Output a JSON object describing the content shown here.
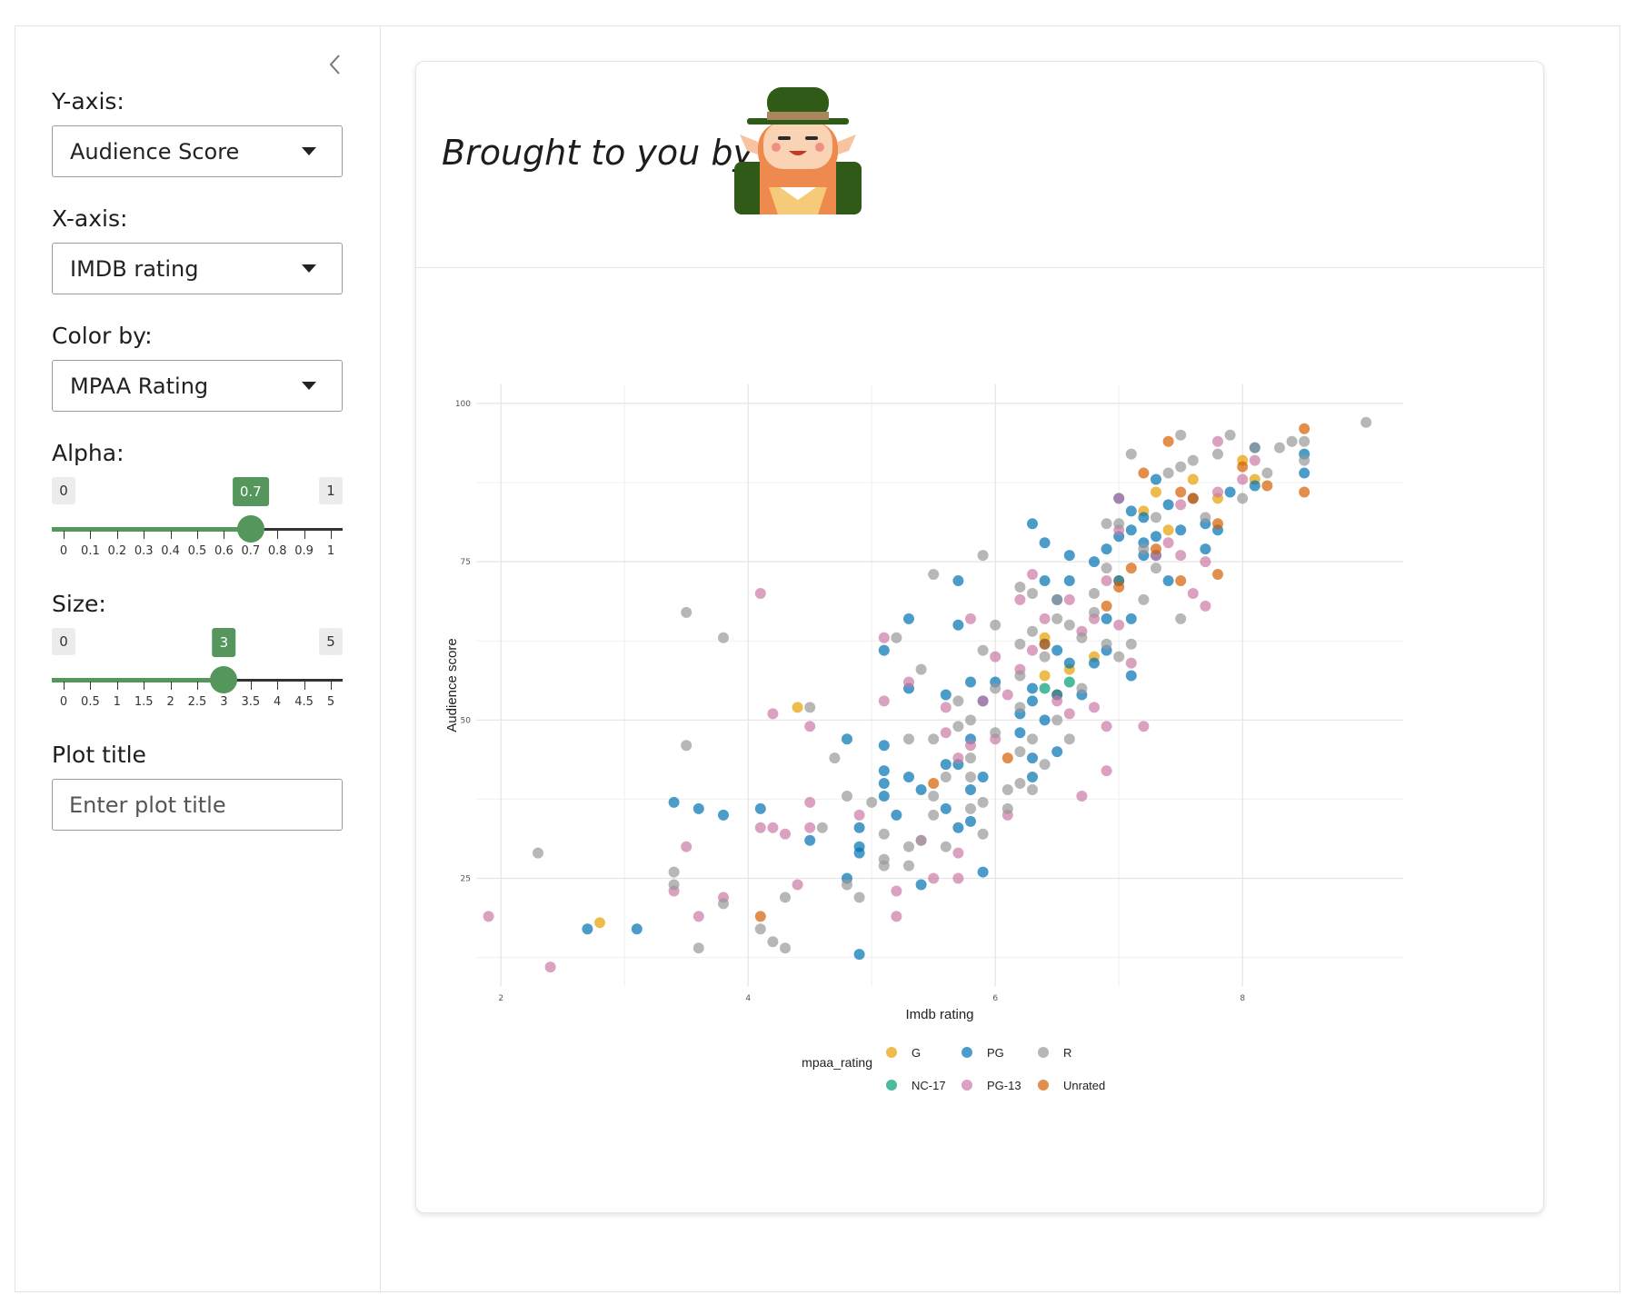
{
  "sidebar": {
    "yaxis": {
      "label": "Y-axis:",
      "value": "Audience Score"
    },
    "xaxis": {
      "label": "X-axis:",
      "value": "IMDB rating"
    },
    "colorby": {
      "label": "Color by:",
      "value": "MPAA Rating"
    },
    "alpha": {
      "label": "Alpha:",
      "min": "0",
      "max": "1",
      "value": "0.7",
      "level": 0.7,
      "ticks": [
        "0",
        "0.1",
        "0.2",
        "0.3",
        "0.4",
        "0.5",
        "0.6",
        "0.7",
        "0.8",
        "0.9",
        "1"
      ]
    },
    "size": {
      "label": "Size:",
      "min": "0",
      "max": "5",
      "value": "3",
      "level": 0.6,
      "ticks": [
        "0",
        "0.5",
        "1",
        "1.5",
        "2",
        "2.5",
        "3",
        "3.5",
        "4",
        "4.5",
        "5"
      ]
    },
    "plot_title": {
      "label": "Plot title",
      "placeholder": "Enter plot title"
    }
  },
  "header": {
    "tagline": "Brought to you by"
  },
  "icons": {
    "collapse": "chevron-left-icon",
    "mascot": "leprechaun-icon"
  },
  "colors": {
    "accent": "#55965c",
    "G": "#E69F00",
    "NC-17": "#009E73",
    "PG": "#0072B2",
    "PG-13": "#CC79A7",
    "R": "#999999",
    "Unrated": "#D55E00"
  },
  "chart_data": {
    "type": "scatter",
    "title": "",
    "xlabel": "Imdb rating",
    "ylabel": "Audience score",
    "xlim": [
      1.8,
      9.3
    ],
    "ylim": [
      8,
      103
    ],
    "xticks": [
      2,
      4,
      6,
      8
    ],
    "yticks": [
      25,
      50,
      75,
      100
    ],
    "grid": true,
    "legend": {
      "title": "mpaa_rating",
      "position": "bottom"
    },
    "series": [
      {
        "name": "G",
        "color": "#E69F00",
        "points": [
          [
            2.8,
            18
          ],
          [
            4.4,
            52
          ],
          [
            6.4,
            63
          ],
          [
            6.4,
            57
          ],
          [
            6.5,
            54
          ],
          [
            6.6,
            58
          ],
          [
            6.8,
            60
          ],
          [
            7.0,
            72
          ],
          [
            7.2,
            83
          ],
          [
            7.3,
            86
          ],
          [
            7.4,
            80
          ],
          [
            7.6,
            88
          ],
          [
            7.8,
            85
          ],
          [
            8.0,
            91
          ],
          [
            8.1,
            88
          ]
        ]
      },
      {
        "name": "NC-17",
        "color": "#009E73",
        "points": [
          [
            6.4,
            55
          ],
          [
            6.6,
            56
          ]
        ]
      },
      {
        "name": "PG",
        "color": "#0072B2",
        "points": [
          [
            2.7,
            17
          ],
          [
            3.1,
            17
          ],
          [
            3.4,
            37
          ],
          [
            3.6,
            36
          ],
          [
            3.8,
            35
          ],
          [
            4.1,
            36
          ],
          [
            4.5,
            31
          ],
          [
            4.8,
            25
          ],
          [
            4.8,
            47
          ],
          [
            4.9,
            33
          ],
          [
            4.9,
            30
          ],
          [
            4.9,
            29
          ],
          [
            4.9,
            13
          ],
          [
            5.1,
            46
          ],
          [
            5.1,
            42
          ],
          [
            5.1,
            40
          ],
          [
            5.1,
            38
          ],
          [
            5.1,
            61
          ],
          [
            5.2,
            35
          ],
          [
            5.3,
            66
          ],
          [
            5.3,
            55
          ],
          [
            5.3,
            41
          ],
          [
            5.4,
            39
          ],
          [
            5.4,
            24
          ],
          [
            5.6,
            36
          ],
          [
            5.6,
            43
          ],
          [
            5.6,
            54
          ],
          [
            5.7,
            33
          ],
          [
            5.7,
            43
          ],
          [
            5.7,
            65
          ],
          [
            5.7,
            72
          ],
          [
            5.8,
            34
          ],
          [
            5.8,
            39
          ],
          [
            5.8,
            47
          ],
          [
            5.8,
            56
          ],
          [
            5.9,
            26
          ],
          [
            5.9,
            41
          ],
          [
            5.9,
            53
          ],
          [
            6.0,
            56
          ],
          [
            6.2,
            51
          ],
          [
            6.2,
            48
          ],
          [
            6.3,
            41
          ],
          [
            6.3,
            44
          ],
          [
            6.3,
            53
          ],
          [
            6.3,
            55
          ],
          [
            6.3,
            81
          ],
          [
            6.4,
            78
          ],
          [
            6.4,
            72
          ],
          [
            6.4,
            62
          ],
          [
            6.4,
            50
          ],
          [
            6.5,
            45
          ],
          [
            6.5,
            54
          ],
          [
            6.5,
            61
          ],
          [
            6.5,
            69
          ],
          [
            6.6,
            59
          ],
          [
            6.6,
            72
          ],
          [
            6.6,
            76
          ],
          [
            6.7,
            54
          ],
          [
            6.8,
            75
          ],
          [
            6.8,
            59
          ],
          [
            6.9,
            61
          ],
          [
            6.9,
            66
          ],
          [
            6.9,
            77
          ],
          [
            7.0,
            72
          ],
          [
            7.0,
            79
          ],
          [
            7.0,
            85
          ],
          [
            7.1,
            80
          ],
          [
            7.1,
            66
          ],
          [
            7.1,
            57
          ],
          [
            7.1,
            83
          ],
          [
            7.2,
            76
          ],
          [
            7.2,
            78
          ],
          [
            7.2,
            82
          ],
          [
            7.3,
            79
          ],
          [
            7.3,
            76
          ],
          [
            7.3,
            88
          ],
          [
            7.4,
            72
          ],
          [
            7.4,
            84
          ],
          [
            7.5,
            80
          ],
          [
            7.6,
            85
          ],
          [
            7.7,
            81
          ],
          [
            7.7,
            77
          ],
          [
            7.8,
            80
          ],
          [
            7.9,
            86
          ],
          [
            8.1,
            87
          ],
          [
            8.1,
            93
          ],
          [
            8.5,
            92
          ],
          [
            8.5,
            89
          ]
        ]
      },
      {
        "name": "PG-13",
        "color": "#CC79A7",
        "points": [
          [
            1.9,
            19
          ],
          [
            2.4,
            11
          ],
          [
            3.4,
            23
          ],
          [
            3.5,
            30
          ],
          [
            3.6,
            19
          ],
          [
            3.8,
            22
          ],
          [
            4.1,
            70
          ],
          [
            4.1,
            33
          ],
          [
            4.2,
            33
          ],
          [
            4.2,
            51
          ],
          [
            4.3,
            32
          ],
          [
            4.4,
            24
          ],
          [
            4.5,
            49
          ],
          [
            4.5,
            37
          ],
          [
            4.5,
            33
          ],
          [
            4.9,
            35
          ],
          [
            5.1,
            53
          ],
          [
            5.1,
            63
          ],
          [
            5.2,
            23
          ],
          [
            5.2,
            19
          ],
          [
            5.3,
            56
          ],
          [
            5.4,
            31
          ],
          [
            5.5,
            25
          ],
          [
            5.6,
            52
          ],
          [
            5.6,
            48
          ],
          [
            5.7,
            44
          ],
          [
            5.7,
            29
          ],
          [
            5.7,
            25
          ],
          [
            5.8,
            46
          ],
          [
            5.8,
            66
          ],
          [
            5.9,
            53
          ],
          [
            6.0,
            60
          ],
          [
            6.0,
            47
          ],
          [
            6.1,
            54
          ],
          [
            6.1,
            35
          ],
          [
            6.2,
            58
          ],
          [
            6.2,
            69
          ],
          [
            6.3,
            73
          ],
          [
            6.3,
            61
          ],
          [
            6.4,
            66
          ],
          [
            6.5,
            53
          ],
          [
            6.6,
            69
          ],
          [
            6.6,
            51
          ],
          [
            6.7,
            64
          ],
          [
            6.7,
            38
          ],
          [
            6.8,
            52
          ],
          [
            6.8,
            66
          ],
          [
            6.9,
            42
          ],
          [
            6.9,
            49
          ],
          [
            6.9,
            72
          ],
          [
            7.0,
            65
          ],
          [
            7.0,
            80
          ],
          [
            7.0,
            85
          ],
          [
            7.1,
            59
          ],
          [
            7.2,
            49
          ],
          [
            7.3,
            76
          ],
          [
            7.4,
            78
          ],
          [
            7.5,
            84
          ],
          [
            7.5,
            76
          ],
          [
            7.6,
            70
          ],
          [
            7.7,
            68
          ],
          [
            7.7,
            75
          ],
          [
            7.8,
            86
          ],
          [
            7.8,
            94
          ],
          [
            8.0,
            88
          ],
          [
            8.1,
            91
          ]
        ]
      },
      {
        "name": "R",
        "color": "#999999",
        "points": [
          [
            2.3,
            29
          ],
          [
            3.4,
            26
          ],
          [
            3.4,
            24
          ],
          [
            3.5,
            67
          ],
          [
            3.5,
            46
          ],
          [
            3.6,
            14
          ],
          [
            3.8,
            63
          ],
          [
            3.8,
            21
          ],
          [
            4.1,
            17
          ],
          [
            4.2,
            15
          ],
          [
            4.3,
            22
          ],
          [
            4.3,
            14
          ],
          [
            4.5,
            52
          ],
          [
            4.6,
            33
          ],
          [
            4.7,
            44
          ],
          [
            4.8,
            38
          ],
          [
            4.8,
            24
          ],
          [
            4.9,
            22
          ],
          [
            5.0,
            37
          ],
          [
            5.1,
            28
          ],
          [
            5.1,
            32
          ],
          [
            5.1,
            27
          ],
          [
            5.2,
            63
          ],
          [
            5.3,
            47
          ],
          [
            5.3,
            30
          ],
          [
            5.3,
            27
          ],
          [
            5.4,
            58
          ],
          [
            5.4,
            31
          ],
          [
            5.5,
            73
          ],
          [
            5.5,
            47
          ],
          [
            5.5,
            38
          ],
          [
            5.5,
            35
          ],
          [
            5.6,
            30
          ],
          [
            5.6,
            41
          ],
          [
            5.7,
            53
          ],
          [
            5.7,
            49
          ],
          [
            5.8,
            50
          ],
          [
            5.8,
            44
          ],
          [
            5.8,
            41
          ],
          [
            5.8,
            36
          ],
          [
            5.9,
            32
          ],
          [
            5.9,
            37
          ],
          [
            5.9,
            61
          ],
          [
            5.9,
            76
          ],
          [
            6.0,
            65
          ],
          [
            6.0,
            55
          ],
          [
            6.0,
            48
          ],
          [
            6.1,
            39
          ],
          [
            6.1,
            36
          ],
          [
            6.2,
            40
          ],
          [
            6.2,
            45
          ],
          [
            6.2,
            52
          ],
          [
            6.2,
            57
          ],
          [
            6.2,
            62
          ],
          [
            6.2,
            71
          ],
          [
            6.3,
            70
          ],
          [
            6.3,
            64
          ],
          [
            6.3,
            47
          ],
          [
            6.3,
            39
          ],
          [
            6.4,
            43
          ],
          [
            6.4,
            60
          ],
          [
            6.5,
            69
          ],
          [
            6.5,
            66
          ],
          [
            6.5,
            50
          ],
          [
            6.6,
            47
          ],
          [
            6.6,
            65
          ],
          [
            6.7,
            63
          ],
          [
            6.7,
            55
          ],
          [
            6.8,
            67
          ],
          [
            6.8,
            70
          ],
          [
            6.9,
            74
          ],
          [
            6.9,
            81
          ],
          [
            6.9,
            62
          ],
          [
            7.0,
            60
          ],
          [
            7.0,
            81
          ],
          [
            7.1,
            62
          ],
          [
            7.1,
            92
          ],
          [
            7.2,
            69
          ],
          [
            7.2,
            77
          ],
          [
            7.3,
            82
          ],
          [
            7.3,
            74
          ],
          [
            7.4,
            89
          ],
          [
            7.5,
            95
          ],
          [
            7.5,
            90
          ],
          [
            7.5,
            66
          ],
          [
            7.6,
            85
          ],
          [
            7.6,
            91
          ],
          [
            7.7,
            82
          ],
          [
            7.8,
            92
          ],
          [
            7.9,
            95
          ],
          [
            8.0,
            85
          ],
          [
            8.1,
            93
          ],
          [
            8.2,
            89
          ],
          [
            8.3,
            93
          ],
          [
            8.4,
            94
          ],
          [
            8.5,
            94
          ],
          [
            8.5,
            91
          ],
          [
            9.0,
            97
          ]
        ]
      },
      {
        "name": "Unrated",
        "color": "#D55E00",
        "points": [
          [
            4.1,
            19
          ],
          [
            5.5,
            40
          ],
          [
            6.1,
            44
          ],
          [
            6.4,
            62
          ],
          [
            6.9,
            68
          ],
          [
            7.0,
            71
          ],
          [
            7.1,
            74
          ],
          [
            7.2,
            89
          ],
          [
            7.3,
            77
          ],
          [
            7.4,
            94
          ],
          [
            7.5,
            86
          ],
          [
            7.5,
            72
          ],
          [
            7.6,
            85
          ],
          [
            7.8,
            81
          ],
          [
            7.8,
            73
          ],
          [
            8.0,
            90
          ],
          [
            8.2,
            87
          ],
          [
            8.5,
            96
          ],
          [
            8.5,
            86
          ]
        ]
      }
    ]
  }
}
